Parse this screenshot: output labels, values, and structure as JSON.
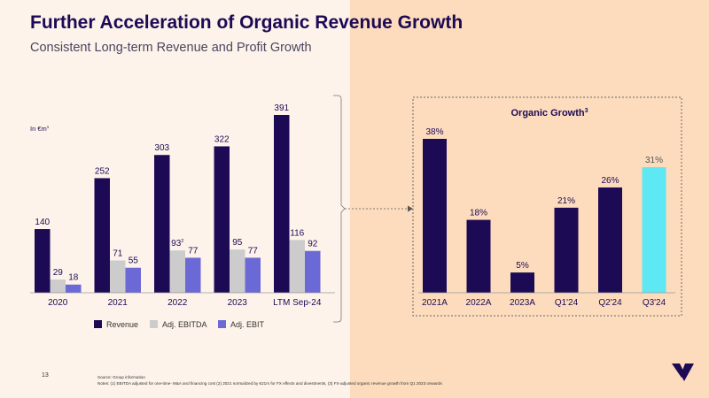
{
  "header": {
    "title": "Further Acceleration of Organic Revenue Growth",
    "subtitle": "Consistent Long-term Revenue and Profit Growth"
  },
  "footer": {
    "page_number": "13",
    "source": "Source: Group information",
    "notes": "Notes: (1) EBITDA adjusted for one-time-  M&A and financing cost (2) 2021 normalized by €21m for FX effects and divestments, (3) FX-adjusted organic revenue growth from Q1 2023 onwards"
  },
  "colors": {
    "revenue": "#1d0a55",
    "ebitda": "#cccccc",
    "ebit": "#6b69d6",
    "growth": "#1d0a55",
    "growth_highlight": "#5de8f4",
    "text": "#1d0a55"
  },
  "chart_data": [
    {
      "type": "bar",
      "unit_label": "In €m",
      "unit_sup": "1",
      "categories": [
        "2020",
        "2021",
        "2022",
        "2023",
        "LTM Sep-24"
      ],
      "series": [
        {
          "name": "Revenue",
          "values": [
            140,
            252,
            303,
            322,
            391
          ]
        },
        {
          "name": "Adj. EBITDA",
          "values": [
            29,
            71,
            93,
            95,
            116
          ]
        },
        {
          "name": "Adj. EBIT",
          "values": [
            18,
            55,
            77,
            77,
            92
          ]
        }
      ],
      "annotations": [
        {
          "category": "2022",
          "series": "Adj. EBITDA",
          "sup": "2"
        }
      ],
      "ylim": [
        0,
        391
      ]
    },
    {
      "type": "bar",
      "title": "Organic Growth",
      "title_sup": "3",
      "categories": [
        "2021A",
        "2022A",
        "2023A",
        "Q1'24",
        "Q2'24",
        "Q3'24"
      ],
      "values": [
        38,
        18,
        5,
        21,
        26,
        31
      ],
      "value_labels": [
        "38%",
        "18%",
        "5%",
        "21%",
        "26%",
        "31%"
      ],
      "highlight_index": 5,
      "ylim": [
        0,
        38
      ]
    }
  ]
}
